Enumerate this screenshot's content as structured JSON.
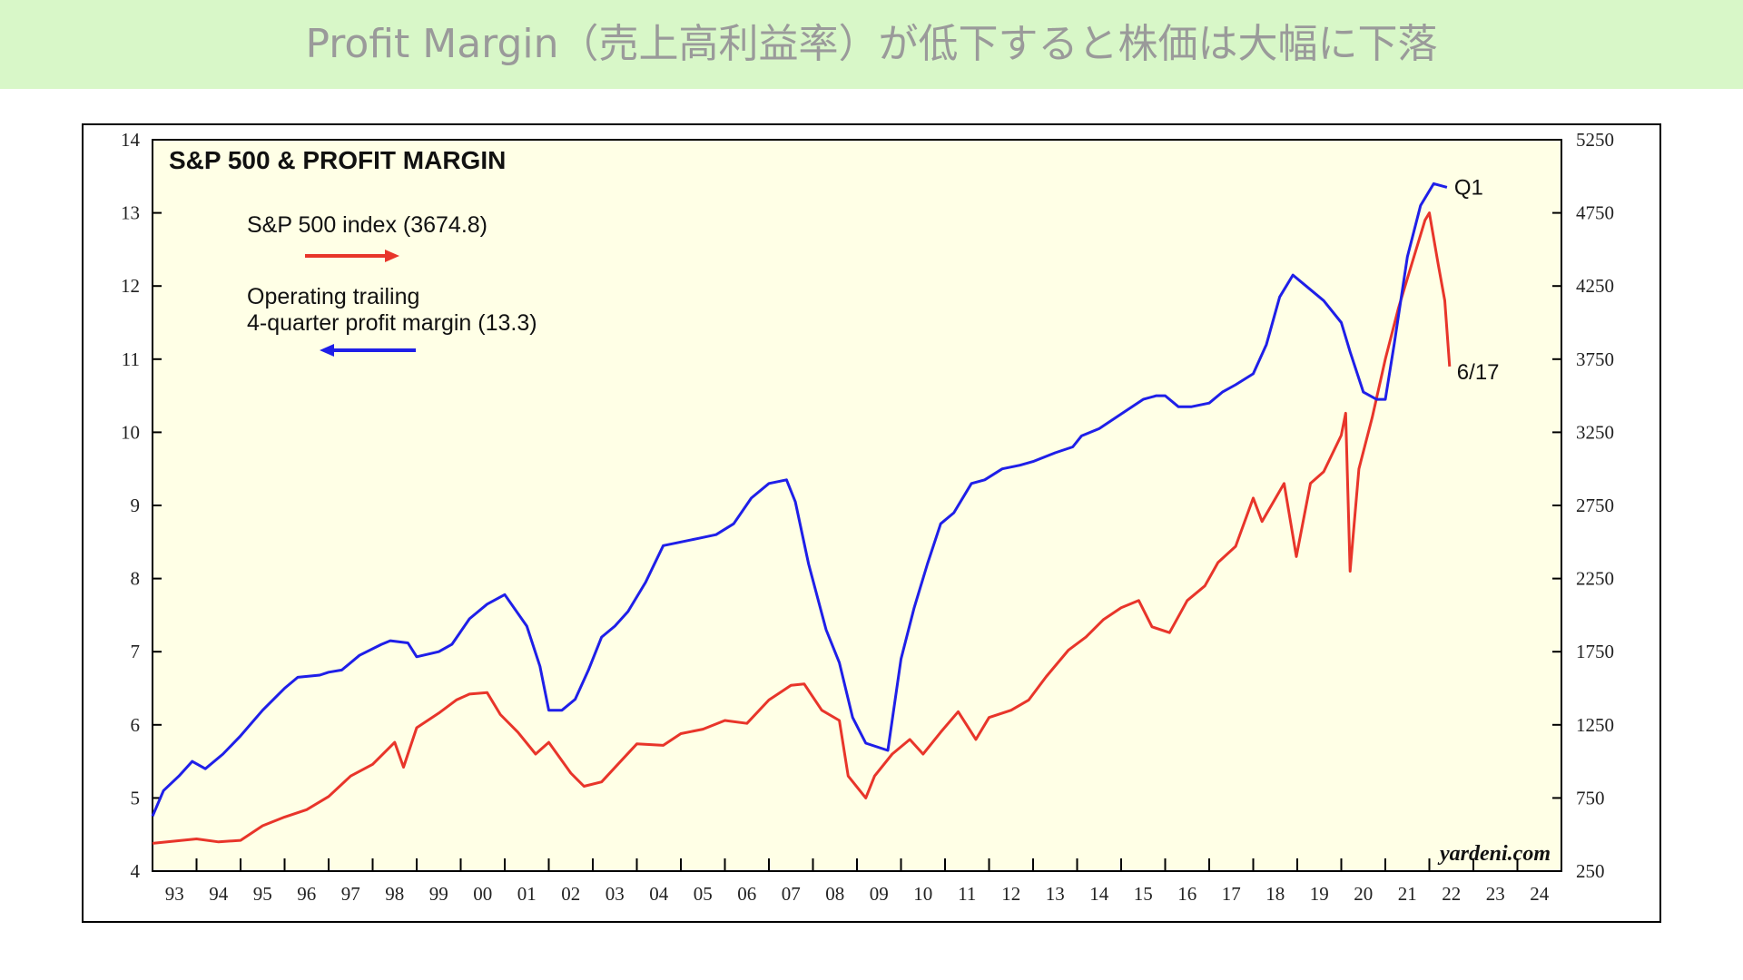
{
  "header": {
    "title": "Profit Margin（売上高利益率）が低下すると株価は大幅に下落"
  },
  "chart_data": {
    "type": "line",
    "title": "S&P 500 & PROFIT MARGIN",
    "source": "yardeni.com",
    "xlim": [
      1993,
      2025
    ],
    "xticks": [
      {
        "value": 1993,
        "label": "93"
      },
      {
        "value": 1994,
        "label": "94"
      },
      {
        "value": 1995,
        "label": "95"
      },
      {
        "value": 1996,
        "label": "96"
      },
      {
        "value": 1997,
        "label": "97"
      },
      {
        "value": 1998,
        "label": "98"
      },
      {
        "value": 1999,
        "label": "99"
      },
      {
        "value": 2000,
        "label": "00"
      },
      {
        "value": 2001,
        "label": "01"
      },
      {
        "value": 2002,
        "label": "02"
      },
      {
        "value": 2003,
        "label": "03"
      },
      {
        "value": 2004,
        "label": "04"
      },
      {
        "value": 2005,
        "label": "05"
      },
      {
        "value": 2006,
        "label": "06"
      },
      {
        "value": 2007,
        "label": "07"
      },
      {
        "value": 2008,
        "label": "08"
      },
      {
        "value": 2009,
        "label": "09"
      },
      {
        "value": 2010,
        "label": "10"
      },
      {
        "value": 2011,
        "label": "11"
      },
      {
        "value": 2012,
        "label": "12"
      },
      {
        "value": 2013,
        "label": "13"
      },
      {
        "value": 2014,
        "label": "14"
      },
      {
        "value": 2015,
        "label": "15"
      },
      {
        "value": 2016,
        "label": "16"
      },
      {
        "value": 2017,
        "label": "17"
      },
      {
        "value": 2018,
        "label": "18"
      },
      {
        "value": 2019,
        "label": "19"
      },
      {
        "value": 2020,
        "label": "20"
      },
      {
        "value": 2021,
        "label": "21"
      },
      {
        "value": 2022,
        "label": "22"
      },
      {
        "value": 2023,
        "label": "23"
      },
      {
        "value": 2024,
        "label": "24"
      }
    ],
    "ylim": [
      4,
      14
    ],
    "yticks": [
      4,
      5,
      6,
      7,
      8,
      9,
      10,
      11,
      12,
      13,
      14
    ],
    "y2lim": [
      250,
      5250
    ],
    "y2ticks": [
      250,
      750,
      1250,
      1750,
      2250,
      2750,
      3250,
      3750,
      4250,
      4750,
      5250
    ],
    "series": [
      {
        "name": "S&P 500 index (3674.8)",
        "color": "#e8352a",
        "axis": "y2",
        "end_label": "6/17",
        "x": [
          1993.0,
          1994.0,
          1994.5,
          1995.0,
          1995.5,
          1996.0,
          1996.5,
          1997.0,
          1997.5,
          1998.0,
          1998.5,
          1998.7,
          1999.0,
          1999.5,
          1999.9,
          2000.2,
          2000.6,
          2000.9,
          2001.3,
          2001.7,
          2002.0,
          2002.5,
          2002.8,
          2003.2,
          2003.6,
          2004.0,
          2004.6,
          2005.0,
          2005.5,
          2006.0,
          2006.5,
          2007.0,
          2007.5,
          2007.8,
          2008.2,
          2008.6,
          2008.8,
          2009.2,
          2009.4,
          2009.8,
          2010.2,
          2010.5,
          2010.9,
          2011.3,
          2011.7,
          2012.0,
          2012.5,
          2012.9,
          2013.3,
          2013.8,
          2014.2,
          2014.6,
          2015.0,
          2015.4,
          2015.7,
          2016.1,
          2016.5,
          2016.9,
          2017.2,
          2017.6,
          2018.0,
          2018.2,
          2018.7,
          2018.98,
          2019.3,
          2019.6,
          2020.0,
          2020.1,
          2020.2,
          2020.4,
          2020.7,
          2021.0,
          2021.3,
          2021.6,
          2021.9,
          2022.0,
          2022.2,
          2022.35,
          2022.46
        ],
        "values": [
          440,
          470,
          450,
          460,
          560,
          620,
          670,
          760,
          900,
          980,
          1130,
          960,
          1230,
          1330,
          1420,
          1460,
          1470,
          1320,
          1200,
          1050,
          1130,
          920,
          830,
          860,
          990,
          1120,
          1110,
          1190,
          1220,
          1280,
          1260,
          1420,
          1520,
          1530,
          1350,
          1280,
          900,
          750,
          900,
          1050,
          1150,
          1050,
          1200,
          1340,
          1150,
          1300,
          1350,
          1420,
          1580,
          1760,
          1850,
          1970,
          2050,
          2100,
          1920,
          1880,
          2100,
          2200,
          2360,
          2470,
          2800,
          2640,
          2900,
          2400,
          2900,
          2980,
          3230,
          3380,
          2300,
          3000,
          3350,
          3750,
          4100,
          4400,
          4700,
          4750,
          4400,
          4150,
          3700
        ]
      },
      {
        "name": [
          "Operating trailing",
          "4-quarter profit margin  (13.3)"
        ],
        "color": "#1f1fe8",
        "end_label": "Q1",
        "x": [
          1993.0,
          1993.25,
          1993.6,
          1993.9,
          1994.2,
          1994.6,
          1995.0,
          1995.5,
          1996.0,
          1996.3,
          1996.8,
          1997.0,
          1997.3,
          1997.7,
          1998.2,
          1998.4,
          1998.8,
          1999.0,
          1999.5,
          1999.8,
          2000.2,
          2000.6,
          2001.0,
          2001.5,
          2001.8,
          2002.0,
          2002.3,
          2002.6,
          2002.9,
          2003.2,
          2003.5,
          2003.8,
          2004.2,
          2004.6,
          2005.0,
          2005.4,
          2005.8,
          2006.2,
          2006.6,
          2007.0,
          2007.4,
          2007.6,
          2007.9,
          2008.3,
          2008.6,
          2008.9,
          2009.2,
          2009.7,
          2010.0,
          2010.3,
          2010.6,
          2010.9,
          2011.2,
          2011.6,
          2011.9,
          2012.3,
          2012.7,
          2013.0,
          2013.5,
          2013.9,
          2014.1,
          2014.5,
          2015.0,
          2015.5,
          2015.8,
          2016.0,
          2016.3,
          2016.6,
          2017.0,
          2017.3,
          2017.6,
          2018.0,
          2018.3,
          2018.6,
          2018.9,
          2019.2,
          2019.6,
          2020.0,
          2020.2,
          2020.5,
          2020.8,
          2021.0,
          2021.2,
          2021.5,
          2021.8,
          2022.1,
          2022.4
        ],
        "values": [
          4.75,
          5.1,
          5.3,
          5.5,
          5.4,
          5.6,
          5.85,
          6.2,
          6.5,
          6.65,
          6.68,
          6.72,
          6.75,
          6.95,
          7.1,
          7.15,
          7.12,
          6.93,
          7.0,
          7.1,
          7.45,
          7.65,
          7.78,
          7.35,
          6.8,
          6.2,
          6.2,
          6.35,
          6.75,
          7.2,
          7.35,
          7.55,
          7.95,
          8.45,
          8.5,
          8.55,
          8.6,
          8.75,
          9.1,
          9.3,
          9.35,
          9.05,
          8.2,
          7.3,
          6.85,
          6.1,
          5.75,
          5.65,
          6.9,
          7.6,
          8.2,
          8.75,
          8.9,
          9.3,
          9.35,
          9.5,
          9.55,
          9.6,
          9.72,
          9.8,
          9.95,
          10.05,
          10.25,
          10.45,
          10.5,
          10.5,
          10.35,
          10.35,
          10.4,
          10.55,
          10.65,
          10.8,
          11.2,
          11.85,
          12.15,
          12.0,
          11.8,
          11.5,
          11.1,
          10.55,
          10.45,
          10.45,
          11.2,
          12.4,
          13.1,
          13.4,
          13.35
        ]
      }
    ]
  }
}
